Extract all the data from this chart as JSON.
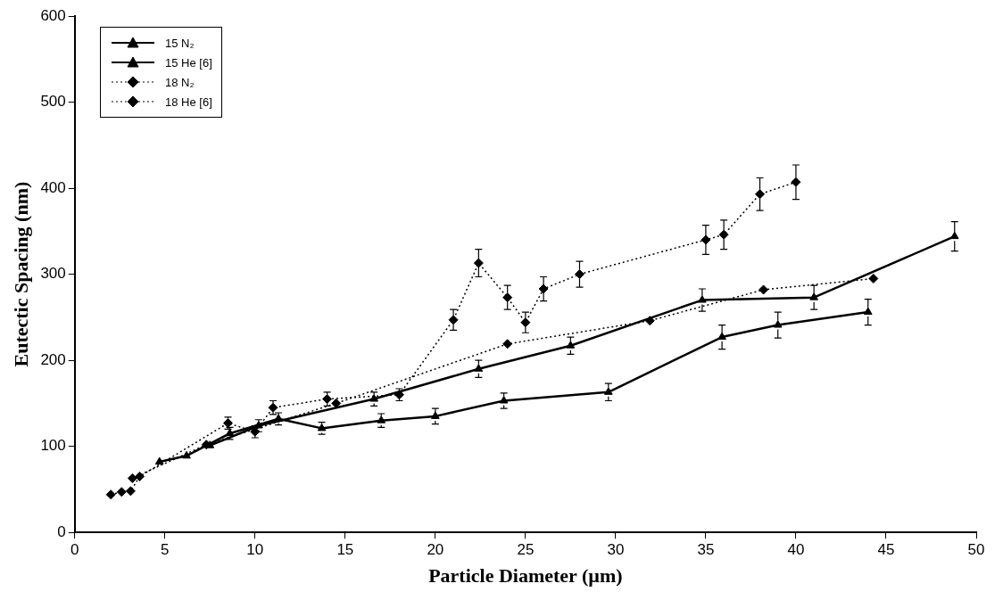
{
  "chart_data": {
    "type": "line",
    "xlabel": "Particle Diameter (µm)",
    "ylabel": "Eutectic Spacing (nm)",
    "xlim": [
      0,
      50
    ],
    "xticks": [
      0,
      5,
      10,
      15,
      20,
      25,
      30,
      35,
      40,
      45,
      50
    ],
    "ylim": [
      0,
      600
    ],
    "yticks": [
      0,
      100,
      200,
      300,
      400,
      500,
      600
    ],
    "grid": false,
    "legend": "top left",
    "series": [
      {
        "name": "15 N₂",
        "color": "#000000",
        "marker": "triangle",
        "line_style": "solid",
        "x": [
          7.5,
          10.2,
          16.6,
          22.4,
          27.5,
          34.8,
          41,
          48.8
        ],
        "values": [
          101,
          124,
          155,
          190,
          217,
          270,
          273,
          344
        ],
        "errors": [
          null,
          7,
          8,
          10,
          10,
          13,
          14,
          17
        ]
      },
      {
        "name": "15 He [6]",
        "color": "#000000",
        "marker": "triangle",
        "line_style": "solid",
        "x": [
          4.7,
          6.2,
          8.6,
          11.3,
          13.7,
          17,
          20,
          23.8,
          29.6,
          35.9,
          39,
          44
        ],
        "values": [
          82,
          89,
          115,
          132,
          121,
          130,
          135,
          153,
          163,
          227,
          241,
          256
        ],
        "errors": [
          null,
          null,
          7,
          7,
          7,
          8,
          9,
          9,
          10,
          14,
          15,
          15
        ]
      },
      {
        "name": "18 N₂",
        "color": "#000000",
        "marker": "diamond",
        "line_style": "dotted",
        "x": [
          2,
          2.6,
          3.1,
          3.6,
          8.5,
          10,
          11,
          14,
          18,
          21,
          22.4,
          24,
          25,
          26,
          28,
          35,
          36,
          38,
          40
        ],
        "values": [
          44,
          47,
          48,
          65,
          127,
          117,
          145,
          155,
          160,
          247,
          313,
          273,
          244,
          283,
          300,
          340,
          346,
          393,
          407
        ],
        "errors": [
          null,
          null,
          null,
          null,
          7,
          7,
          8,
          8,
          7,
          12,
          16,
          14,
          12,
          14,
          15,
          17,
          17,
          19,
          20
        ]
      },
      {
        "name": "18 He [6]",
        "color": "#000000",
        "marker": "diamond",
        "line_style": "dotted",
        "x": [
          3.2,
          7.3,
          14.5,
          24,
          31.9,
          38.2,
          44.3
        ],
        "values": [
          63,
          102,
          150,
          219,
          246,
          282,
          295
        ]
      }
    ]
  }
}
